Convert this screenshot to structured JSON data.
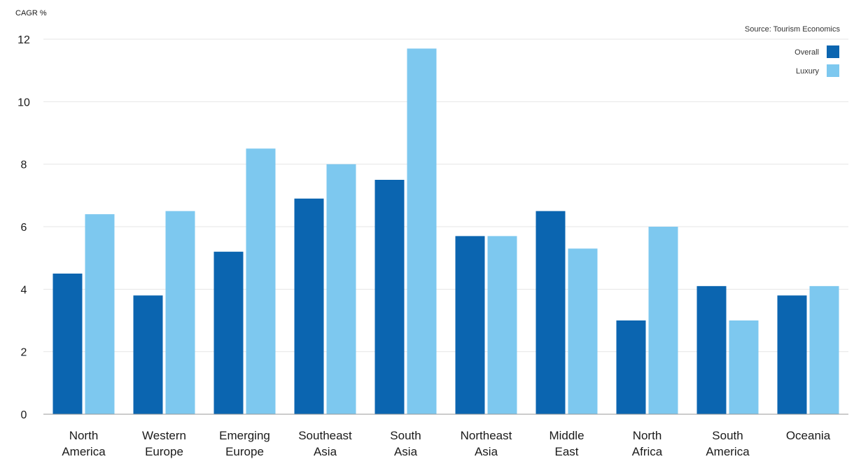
{
  "chart_data": {
    "type": "bar",
    "ylabel": "CAGR %",
    "source_note": "Source: Tourism Economics",
    "ylim": [
      0,
      12
    ],
    "yticks": [
      0,
      2,
      4,
      6,
      8,
      10,
      12
    ],
    "grid": true,
    "legend_position": "top-right",
    "categories": [
      [
        "North",
        "America"
      ],
      [
        "Western",
        "Europe"
      ],
      [
        "Emerging",
        "Europe"
      ],
      [
        "Southeast",
        "Asia"
      ],
      [
        "South",
        "Asia"
      ],
      [
        "Northeast",
        "Asia"
      ],
      [
        "Middle",
        "East"
      ],
      [
        "North",
        "Africa"
      ],
      [
        "South",
        "America"
      ],
      [
        "Oceania"
      ]
    ],
    "series": [
      {
        "name": "Overall",
        "color": "#0b65b0",
        "values": [
          4.5,
          3.8,
          5.2,
          6.9,
          7.5,
          5.7,
          6.5,
          3.0,
          4.1,
          3.8
        ]
      },
      {
        "name": "Luxury",
        "color": "#7dc8ef",
        "values": [
          6.4,
          6.5,
          8.5,
          8.0,
          11.7,
          5.7,
          5.3,
          6.0,
          3.0,
          4.1
        ]
      }
    ]
  }
}
